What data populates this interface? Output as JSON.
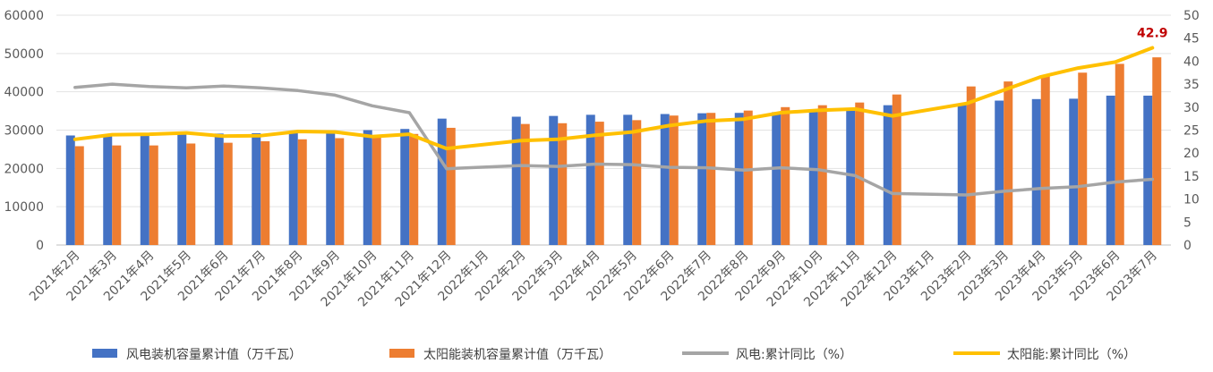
{
  "chart_data": {
    "type": "bar",
    "categories": [
      "2021年2月",
      "2021年3月",
      "2021年4月",
      "2021年5月",
      "2021年6月",
      "2021年7月",
      "2021年8月",
      "2021年9月",
      "2021年10月",
      "2021年11月",
      "2021年12月",
      "2022年1月",
      "2022年2月",
      "2022年3月",
      "2022年4月",
      "2022年5月",
      "2022年6月",
      "2022年7月",
      "2022年8月",
      "2022年9月",
      "2022年10月",
      "2022年11月",
      "2022年12月",
      "2023年1月",
      "2023年2月",
      "2023年3月",
      "2023年4月",
      "2023年5月",
      "2023年6月",
      "2023年7月"
    ],
    "series": [
      {
        "name": "风电装机容量累计值（万千瓦）",
        "type": "bar",
        "axis": "left",
        "color": "#4472c4",
        "values": [
          28600,
          28700,
          28900,
          29000,
          29100,
          29200,
          29500,
          29700,
          30000,
          30300,
          33000,
          null,
          33500,
          33700,
          34000,
          34000,
          34200,
          34400,
          34500,
          34700,
          35000,
          35500,
          36500,
          null,
          36700,
          37700,
          38100,
          38200,
          39000,
          39000
        ]
      },
      {
        "name": "太阳能装机容量累计值（万千瓦）",
        "type": "bar",
        "axis": "left",
        "color": "#ed7d31",
        "values": [
          25800,
          26000,
          26000,
          26500,
          26700,
          27100,
          27600,
          27900,
          28500,
          29000,
          30600,
          null,
          31600,
          31800,
          32200,
          32600,
          33800,
          34500,
          35100,
          36000,
          36500,
          37200,
          39300,
          null,
          41400,
          42700,
          44000,
          45000,
          47300,
          49000
        ]
      },
      {
        "name": "风电:累计同比（%）",
        "type": "line",
        "axis": "right",
        "color": "#a5a5a5",
        "values": [
          34.3,
          35.0,
          34.5,
          34.2,
          34.6,
          34.2,
          33.6,
          32.6,
          30.3,
          28.8,
          16.6,
          null,
          17.3,
          17.1,
          17.6,
          17.5,
          16.9,
          16.8,
          16.3,
          16.8,
          16.4,
          15.1,
          11.2,
          null,
          10.9,
          11.7,
          12.3,
          12.7,
          13.7,
          14.3
        ]
      },
      {
        "name": "太阳能:累计同比（%）",
        "type": "line",
        "axis": "right",
        "color": "#ffc000",
        "values": [
          23.0,
          24.0,
          24.1,
          24.4,
          23.7,
          23.8,
          24.7,
          24.6,
          23.6,
          24.1,
          21.0,
          null,
          22.7,
          23.0,
          23.9,
          24.6,
          26.0,
          27.0,
          27.4,
          28.8,
          29.3,
          29.6,
          28.1,
          null,
          30.8,
          33.7,
          36.6,
          38.5,
          39.8,
          42.9
        ]
      }
    ],
    "ylim": [
      0,
      60000
    ],
    "yticks": [
      "0",
      "10000",
      "20000",
      "30000",
      "40000",
      "50000",
      "60000"
    ],
    "y2lim": [
      0,
      50
    ],
    "y2ticks": [
      "0",
      "5",
      "10",
      "15",
      "20",
      "25",
      "30",
      "35",
      "40",
      "45",
      "50"
    ],
    "annotation": {
      "text": "42.9",
      "color": "#c00000"
    },
    "legend_position": "bottom",
    "grid": true,
    "title": "",
    "xlabel": "",
    "ylabel": ""
  }
}
